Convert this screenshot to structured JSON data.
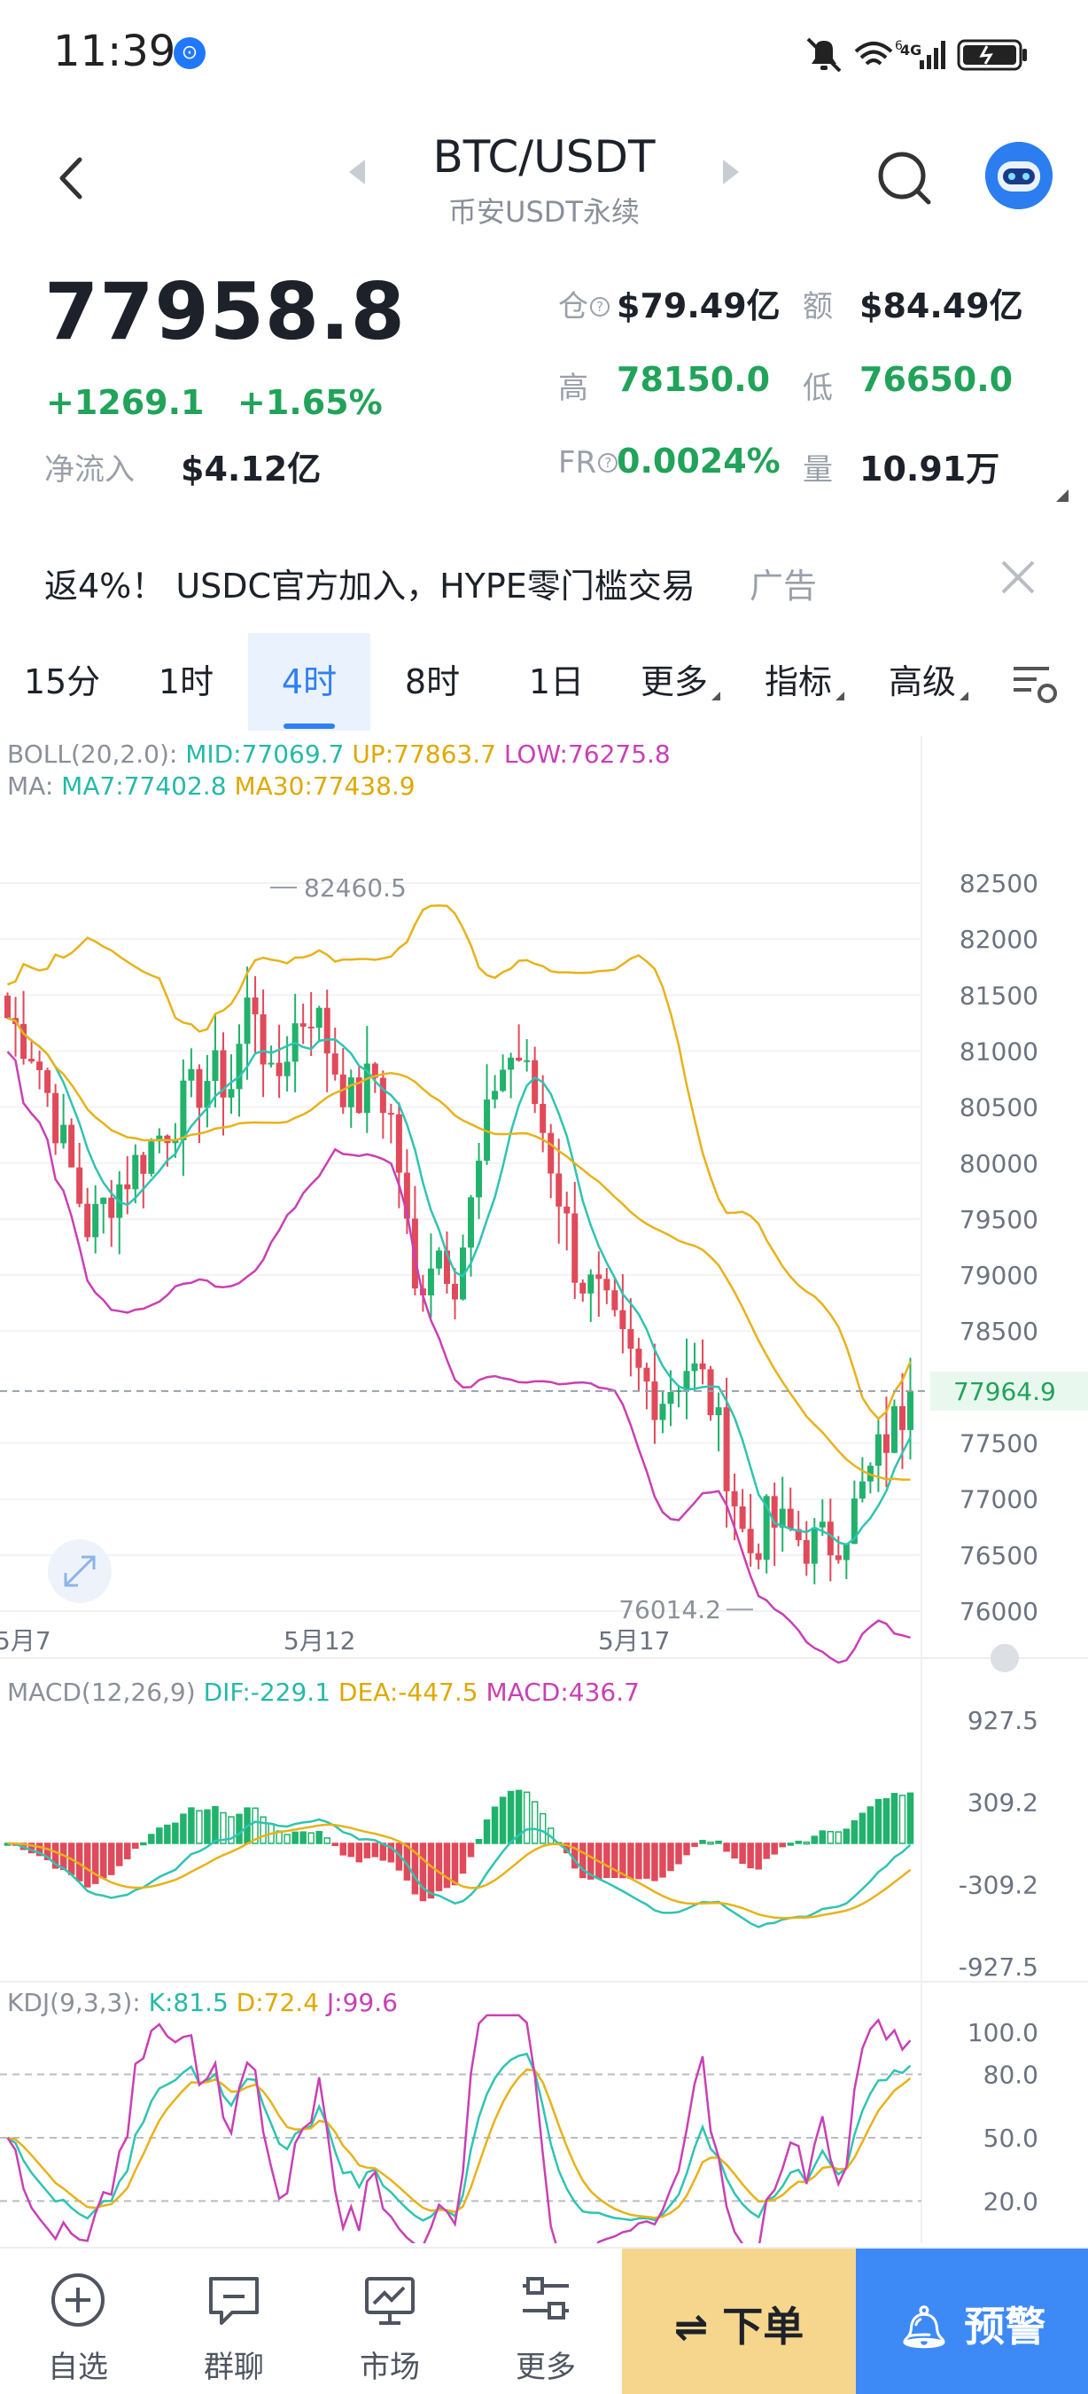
{
  "status_bar": {
    "time": "11:39",
    "network": "4G"
  },
  "header": {
    "pair": "BTC/USDT",
    "subtitle": "币安USDT永续"
  },
  "ticker": {
    "last_price": "77958.8",
    "change_abs": "+1269.1",
    "change_pct": "+1.65%",
    "netflow_label": "净流入",
    "netflow_value": "$4.12亿",
    "open_interest_label": "仓",
    "open_interest_value": "$79.49亿",
    "turnover_label": "额",
    "turnover_value": "$84.49亿",
    "high_label": "高",
    "high_value": "78150.0",
    "low_label": "低",
    "low_value": "76650.0",
    "funding_label": "FR",
    "funding_value": "0.0024%",
    "volume_label": "量",
    "volume_value": "10.91万"
  },
  "ad": {
    "text": "返4%！ USDC官方加入，HYPE零门槛交易",
    "tag": "广告"
  },
  "tabs": [
    {
      "label": "15分"
    },
    {
      "label": "1时"
    },
    {
      "label": "4时",
      "active": true
    },
    {
      "label": "8时"
    },
    {
      "label": "1日"
    },
    {
      "label": "更多",
      "dropdown": true
    },
    {
      "label": "指标",
      "dropdown": true
    },
    {
      "label": "高级",
      "dropdown": true
    }
  ],
  "indicators": {
    "boll_name": "BOLL(20,2.0):",
    "boll_mid": "MID:77069.7",
    "boll_up": "UP:77863.7",
    "boll_low": "LOW:76275.8",
    "ma_name": "MA:",
    "ma7": "MA7:77402.8",
    "ma30": "MA30:77438.9",
    "macd_name": "MACD(12,26,9)",
    "macd_dif": "DIF:-229.1",
    "macd_dea": "DEA:-447.5",
    "macd_val": "MACD:436.7",
    "kdj_name": "KDJ(9,3,3):",
    "kdj_k": "K:81.5",
    "kdj_d": "D:72.4",
    "kdj_j": "J:99.6"
  },
  "chart_data": {
    "type": "candlestick",
    "price_axis": [
      "82500",
      "82000",
      "81500",
      "81000",
      "80500",
      "80000",
      "79500",
      "79000",
      "78500",
      "77500",
      "77000",
      "76500",
      "76000"
    ],
    "price_ticks_values": [
      82500,
      82000,
      81500,
      81000,
      80500,
      80000,
      79500,
      79000,
      78500,
      77500,
      77000,
      76500,
      76000
    ],
    "current_price_label": "77964.9",
    "current_price": 77964.9,
    "max_label": "82460.5",
    "min_label": "76014.2",
    "date_labels": [
      "5月7",
      "5月12",
      "5月17"
    ],
    "macd_axis": [
      "927.5",
      "309.2",
      "-309.2",
      "-927.5"
    ],
    "kdj_axis": [
      "100.0",
      "80.0",
      "50.0",
      "20.0"
    ],
    "colors": {
      "up": "#21b26c",
      "down": "#e04a5a",
      "ma7": "#2fc4b2",
      "ma30": "#e8b21a",
      "boll": "#c940b4"
    }
  },
  "bottom_nav": {
    "items": [
      {
        "label": "自选",
        "icon": "plus-circle-icon"
      },
      {
        "label": "群聊",
        "icon": "chat-icon"
      },
      {
        "label": "市场",
        "icon": "market-chart-icon"
      },
      {
        "label": "更多",
        "icon": "sliders-icon"
      }
    ],
    "order_label": "下单",
    "alert_label": "预警"
  }
}
